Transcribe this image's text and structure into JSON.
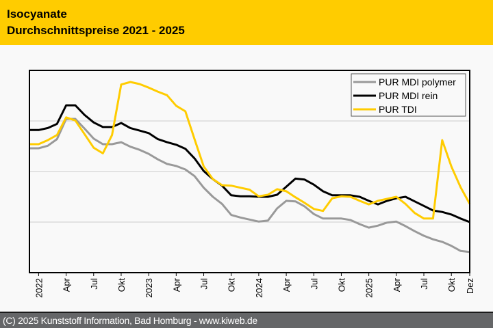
{
  "header": {
    "title_line1": "Isocyanate",
    "title_line2": "Durchschnittspreise 2021 - 2025",
    "background": "#ffcc00"
  },
  "footer": {
    "text": "(C) 2025 Kunststoff Information, Bad Homburg - www.kiweb.de",
    "background": "#656668"
  },
  "chart_data": {
    "type": "line",
    "title": "Isocyanate Durchschnittspreise 2021 - 2025",
    "xlabel": "",
    "ylabel": "",
    "y_axis_labels_shown": false,
    "ylim": [
      0,
      4
    ],
    "grid": true,
    "grid_values": [
      1,
      2,
      3
    ],
    "legend_position": "top-right",
    "x": [
      "Dez 2021",
      "Jan 2022",
      "Feb 2022",
      "Mär 2022",
      "Apr 2022",
      "Mai 2022",
      "Jun 2022",
      "Jul 2022",
      "Aug 2022",
      "Sep 2022",
      "Okt 2022",
      "Nov 2022",
      "Dez 2022",
      "Jan 2023",
      "Feb 2023",
      "Mär 2023",
      "Apr 2023",
      "Mai 2023",
      "Jun 2023",
      "Jul 2023",
      "Aug 2023",
      "Sep 2023",
      "Okt 2023",
      "Nov 2023",
      "Dez 2023",
      "Jan 2024",
      "Feb 2024",
      "Mär 2024",
      "Apr 2024",
      "Mai 2024",
      "Jun 2024",
      "Jul 2024",
      "Aug 2024",
      "Sep 2024",
      "Okt 2024",
      "Nov 2024",
      "Dez 2024",
      "Jan 2025",
      "Feb 2025",
      "Mär 2025",
      "Apr 2025",
      "Mai 2025",
      "Jun 2025",
      "Jul 2025",
      "Aug 2025",
      "Sep 2025",
      "Okt 2025",
      "Nov 2025",
      "Dez 2025"
    ],
    "x_ticks": [
      {
        "index": 1,
        "label": "2022"
      },
      {
        "index": 4,
        "label": "Apr"
      },
      {
        "index": 7,
        "label": "Jul"
      },
      {
        "index": 10,
        "label": "Okt"
      },
      {
        "index": 13,
        "label": "2023"
      },
      {
        "index": 16,
        "label": "Apr"
      },
      {
        "index": 19,
        "label": "Jul"
      },
      {
        "index": 22,
        "label": "Okt"
      },
      {
        "index": 25,
        "label": "2024"
      },
      {
        "index": 28,
        "label": "Apr"
      },
      {
        "index": 31,
        "label": "Jul"
      },
      {
        "index": 34,
        "label": "Okt"
      },
      {
        "index": 37,
        "label": "2025"
      },
      {
        "index": 40,
        "label": "Apr"
      },
      {
        "index": 43,
        "label": "Jul"
      },
      {
        "index": 46,
        "label": "Okt"
      },
      {
        "index": 48,
        "label": "Dez"
      }
    ],
    "series": [
      {
        "name": "PUR MDI polymer",
        "color": "#999999",
        "values": [
          2.46,
          2.46,
          2.51,
          2.64,
          3.04,
          3.04,
          2.85,
          2.65,
          2.54,
          2.54,
          2.58,
          2.49,
          2.43,
          2.35,
          2.24,
          2.15,
          2.11,
          2.04,
          1.91,
          1.68,
          1.5,
          1.36,
          1.14,
          1.09,
          1.05,
          1.01,
          1.03,
          1.27,
          1.42,
          1.41,
          1.31,
          1.16,
          1.07,
          1.07,
          1.07,
          1.04,
          0.96,
          0.89,
          0.93,
          0.99,
          1.01,
          0.92,
          0.82,
          0.73,
          0.66,
          0.61,
          0.53,
          0.43,
          0.41
        ]
      },
      {
        "name": "PUR MDI rein",
        "color": "#000000",
        "values": [
          2.82,
          2.82,
          2.86,
          2.94,
          3.31,
          3.31,
          3.12,
          2.97,
          2.88,
          2.88,
          2.96,
          2.86,
          2.81,
          2.76,
          2.64,
          2.58,
          2.53,
          2.45,
          2.26,
          2.01,
          1.85,
          1.72,
          1.53,
          1.51,
          1.51,
          1.5,
          1.5,
          1.54,
          1.7,
          1.86,
          1.84,
          1.74,
          1.61,
          1.53,
          1.53,
          1.53,
          1.5,
          1.42,
          1.35,
          1.42,
          1.47,
          1.5,
          1.41,
          1.32,
          1.23,
          1.2,
          1.15,
          1.07,
          1.0
        ]
      },
      {
        "name": "PUR TDI",
        "color": "#ffcc00",
        "values": [
          2.54,
          2.54,
          2.62,
          2.72,
          3.07,
          3.01,
          2.74,
          2.47,
          2.36,
          2.72,
          3.72,
          3.77,
          3.73,
          3.66,
          3.58,
          3.51,
          3.3,
          3.19,
          2.64,
          2.1,
          1.85,
          1.73,
          1.72,
          1.68,
          1.64,
          1.51,
          1.54,
          1.65,
          1.61,
          1.49,
          1.38,
          1.26,
          1.22,
          1.47,
          1.51,
          1.5,
          1.42,
          1.35,
          1.42,
          1.46,
          1.5,
          1.36,
          1.18,
          1.07,
          1.07,
          2.62,
          2.1,
          1.69,
          1.36
        ]
      }
    ]
  }
}
